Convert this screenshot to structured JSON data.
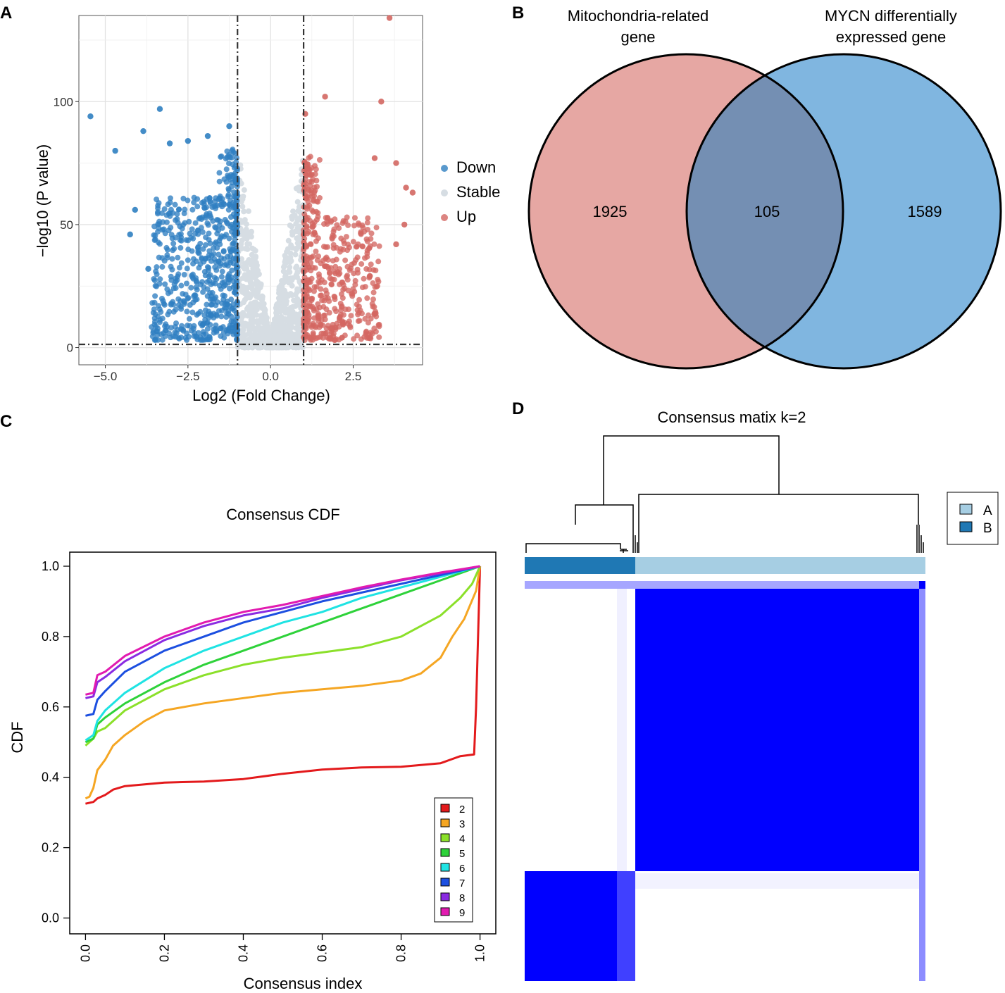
{
  "panel_labels": [
    "A",
    "B",
    "C",
    "D"
  ],
  "chart_data": [
    {
      "type": "scatter",
      "panel": "A",
      "title": "",
      "xlabel": "Log2 (Fold Change)",
      "ylabel": "−log10 (P value)",
      "xlim": [
        -5.8,
        4.6
      ],
      "ylim": [
        -7,
        135
      ],
      "x_ticks": [
        -5,
        -2.5,
        0,
        2.5
      ],
      "x_tick_labels": [
        "−5.0",
        "−2.5",
        "0.0",
        "2.5"
      ],
      "y_ticks": [
        0,
        50,
        100
      ],
      "y_tick_labels": [
        "0",
        "50",
        "100"
      ],
      "thresholds": {
        "logfc": [
          -1,
          1
        ],
        "neg_log10_p": 1.3
      },
      "legend": [
        {
          "label": "Down",
          "color": "#2f7fc1"
        },
        {
          "label": "Stable",
          "color": "#d6dde3"
        },
        {
          "label": "Up",
          "color": "#d36762"
        }
      ],
      "highlight_points": [
        {
          "group": "Down",
          "x": -5.45,
          "y": 94
        },
        {
          "group": "Down",
          "x": -4.7,
          "y": 80
        },
        {
          "group": "Down",
          "x": -4.1,
          "y": 56
        },
        {
          "group": "Down",
          "x": -4.25,
          "y": 46
        },
        {
          "group": "Down",
          "x": -3.85,
          "y": 88
        },
        {
          "group": "Down",
          "x": -3.35,
          "y": 97
        },
        {
          "group": "Down",
          "x": -3.05,
          "y": 83
        },
        {
          "group": "Down",
          "x": -2.5,
          "y": 84
        },
        {
          "group": "Down",
          "x": -1.9,
          "y": 86
        },
        {
          "group": "Down",
          "x": -1.25,
          "y": 90
        },
        {
          "group": "Down",
          "x": -3.7,
          "y": 32
        },
        {
          "group": "Up",
          "x": 3.6,
          "y": 134
        },
        {
          "group": "Up",
          "x": 3.35,
          "y": 100
        },
        {
          "group": "Up",
          "x": 1.65,
          "y": 102
        },
        {
          "group": "Up",
          "x": 1.05,
          "y": 95
        },
        {
          "group": "Up",
          "x": 4.3,
          "y": 63
        },
        {
          "group": "Up",
          "x": 4.1,
          "y": 65
        },
        {
          "group": "Up",
          "x": 3.8,
          "y": 75
        },
        {
          "group": "Up",
          "x": 3.15,
          "y": 77
        },
        {
          "group": "Up",
          "x": 4.05,
          "y": 50
        },
        {
          "group": "Up",
          "x": 3.8,
          "y": 42
        },
        {
          "group": "Up",
          "x": 3.0,
          "y": 29
        }
      ]
    },
    {
      "type": "venn",
      "panel": "B",
      "sets": [
        {
          "name": "Mitochondria-related gene",
          "label_lines": [
            "Mitochondria-related",
            "gene"
          ],
          "only": "1925",
          "color": "#e6a7a3"
        },
        {
          "name": "MYCN differentially expressed gene",
          "label_lines": [
            "MYCN differentially",
            "expressed gene"
          ],
          "only": "1589",
          "color": "#80b6e0"
        }
      ],
      "intersection": "105",
      "intersection_color": "#748fb3"
    },
    {
      "type": "line",
      "panel": "C",
      "title": "Consensus CDF",
      "xlabel": "Consensus index",
      "ylabel": "CDF",
      "xlim": [
        -0.04,
        1.04
      ],
      "ylim": [
        -0.045,
        1.04
      ],
      "x_ticks": [
        0,
        0.2,
        0.4,
        0.6,
        0.8,
        1.0
      ],
      "x_tick_labels": [
        "0.0",
        "0.2",
        "0.4",
        "0.6",
        "0.8",
        "1.0"
      ],
      "y_ticks": [
        0,
        0.2,
        0.4,
        0.6,
        0.8,
        1.0
      ],
      "y_tick_labels": [
        "0.0",
        "0.2",
        "0.4",
        "0.6",
        "0.8",
        "1.0"
      ],
      "legend_position": "bottom-right",
      "series": [
        {
          "name": "2",
          "color": "#e31a1c",
          "x": [
            0,
            0.02,
            0.03,
            0.05,
            0.07,
            0.1,
            0.2,
            0.3,
            0.4,
            0.5,
            0.6,
            0.7,
            0.8,
            0.9,
            0.95,
            0.985,
            0.99,
            1.0
          ],
          "y": [
            0.325,
            0.33,
            0.34,
            0.35,
            0.365,
            0.375,
            0.385,
            0.388,
            0.395,
            0.41,
            0.422,
            0.428,
            0.43,
            0.44,
            0.46,
            0.465,
            0.6,
            1.0
          ]
        },
        {
          "name": "3",
          "color": "#f5a623",
          "x": [
            0,
            0.01,
            0.02,
            0.03,
            0.05,
            0.07,
            0.1,
            0.15,
            0.2,
            0.3,
            0.4,
            0.5,
            0.6,
            0.7,
            0.8,
            0.85,
            0.9,
            0.93,
            0.96,
            0.975,
            0.99,
            1.0
          ],
          "y": [
            0.34,
            0.345,
            0.37,
            0.42,
            0.45,
            0.49,
            0.52,
            0.56,
            0.59,
            0.61,
            0.625,
            0.64,
            0.65,
            0.66,
            0.675,
            0.695,
            0.74,
            0.8,
            0.85,
            0.89,
            0.93,
            1.0
          ]
        },
        {
          "name": "4",
          "color": "#8be02a",
          "x": [
            0,
            0.02,
            0.03,
            0.05,
            0.1,
            0.2,
            0.3,
            0.4,
            0.5,
            0.6,
            0.7,
            0.8,
            0.9,
            0.95,
            0.98,
            1.0
          ],
          "y": [
            0.49,
            0.51,
            0.53,
            0.54,
            0.59,
            0.65,
            0.69,
            0.72,
            0.74,
            0.755,
            0.77,
            0.8,
            0.86,
            0.91,
            0.95,
            1.0
          ]
        },
        {
          "name": "5",
          "color": "#2ed23a",
          "x": [
            0,
            0.02,
            0.03,
            0.05,
            0.1,
            0.2,
            0.3,
            0.4,
            0.5,
            0.6,
            0.7,
            0.8,
            0.9,
            0.95,
            1.0
          ],
          "y": [
            0.5,
            0.51,
            0.55,
            0.57,
            0.61,
            0.67,
            0.72,
            0.76,
            0.8,
            0.84,
            0.88,
            0.92,
            0.96,
            0.98,
            1.0
          ]
        },
        {
          "name": "6",
          "color": "#1fe3e3",
          "x": [
            0,
            0.02,
            0.03,
            0.05,
            0.1,
            0.2,
            0.3,
            0.4,
            0.5,
            0.6,
            0.7,
            0.8,
            0.9,
            1.0
          ],
          "y": [
            0.505,
            0.52,
            0.56,
            0.59,
            0.64,
            0.71,
            0.76,
            0.8,
            0.84,
            0.87,
            0.91,
            0.94,
            0.97,
            1.0
          ]
        },
        {
          "name": "7",
          "color": "#1c4fe0",
          "x": [
            0,
            0.02,
            0.03,
            0.05,
            0.1,
            0.2,
            0.3,
            0.4,
            0.5,
            0.6,
            0.7,
            0.8,
            0.9,
            1.0
          ],
          "y": [
            0.575,
            0.58,
            0.62,
            0.645,
            0.7,
            0.76,
            0.8,
            0.84,
            0.87,
            0.9,
            0.925,
            0.95,
            0.975,
            1.0
          ]
        },
        {
          "name": "8",
          "color": "#8a2be2",
          "x": [
            0,
            0.02,
            0.03,
            0.05,
            0.1,
            0.2,
            0.3,
            0.4,
            0.5,
            0.6,
            0.7,
            0.8,
            0.9,
            1.0
          ],
          "y": [
            0.625,
            0.63,
            0.67,
            0.685,
            0.73,
            0.79,
            0.83,
            0.86,
            0.88,
            0.91,
            0.935,
            0.96,
            0.98,
            1.0
          ]
        },
        {
          "name": "9",
          "color": "#e21bb0",
          "x": [
            0,
            0.02,
            0.03,
            0.05,
            0.1,
            0.2,
            0.3,
            0.4,
            0.5,
            0.6,
            0.7,
            0.8,
            0.9,
            1.0
          ],
          "y": [
            0.635,
            0.64,
            0.69,
            0.7,
            0.745,
            0.8,
            0.84,
            0.87,
            0.89,
            0.915,
            0.94,
            0.962,
            0.982,
            1.0
          ]
        }
      ]
    },
    {
      "type": "heatmap",
      "panel": "D",
      "title": "Consensus matix k=2",
      "clusters": [
        {
          "name": "A",
          "color": "#a6cee3",
          "share": 0.7,
          "order": 2
        },
        {
          "name": "B",
          "color": "#1f78b4",
          "share": 0.275,
          "order": 1
        }
      ],
      "color_scale": [
        "#ffffff",
        "#0000ff"
      ],
      "legend_position": "top-right",
      "legend": [
        {
          "label": "A",
          "color": "#a6cee3"
        },
        {
          "label": "B",
          "color": "#1f78b4"
        }
      ]
    }
  ]
}
